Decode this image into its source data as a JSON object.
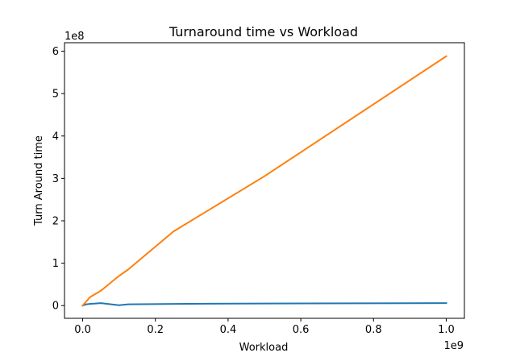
{
  "chart_data": {
    "type": "line",
    "title": "Turnaround time vs Workload",
    "xlabel": "Workload",
    "ylabel": "Turn Around time",
    "x_offset_label": "1e9",
    "y_offset_label": "1e8",
    "x_scale_factor": 1000000000,
    "y_scale_factor": 100000000,
    "xlim": [
      -0.05,
      1.05
    ],
    "ylim": [
      -0.3,
      6.2
    ],
    "x_ticks": [
      0.0,
      0.2,
      0.4,
      0.6,
      0.8,
      1.0
    ],
    "x_tick_labels": [
      "0.0",
      "0.2",
      "0.4",
      "0.6",
      "0.8",
      "1.0"
    ],
    "y_ticks": [
      0,
      1,
      2,
      3,
      4,
      5,
      6
    ],
    "y_tick_labels": [
      "0",
      "1",
      "2",
      "3",
      "4",
      "5",
      "6"
    ],
    "grid": false,
    "legend": false,
    "series": [
      {
        "color": "#1f77b4",
        "x": [
          0.0,
          0.01,
          0.02,
          0.05,
          0.1,
          0.125,
          0.25,
          0.5,
          1.0
        ],
        "y": [
          0.0,
          0.03,
          0.04,
          0.06,
          0.01,
          0.03,
          0.04,
          0.05,
          0.06
        ]
      },
      {
        "color": "#ff7f0e",
        "x": [
          0.0,
          0.01,
          0.02,
          0.05,
          0.1,
          0.125,
          0.25,
          0.5,
          1.0
        ],
        "y": [
          0.0,
          0.1,
          0.2,
          0.35,
          0.7,
          0.85,
          1.75,
          3.05,
          5.88
        ]
      }
    ]
  }
}
